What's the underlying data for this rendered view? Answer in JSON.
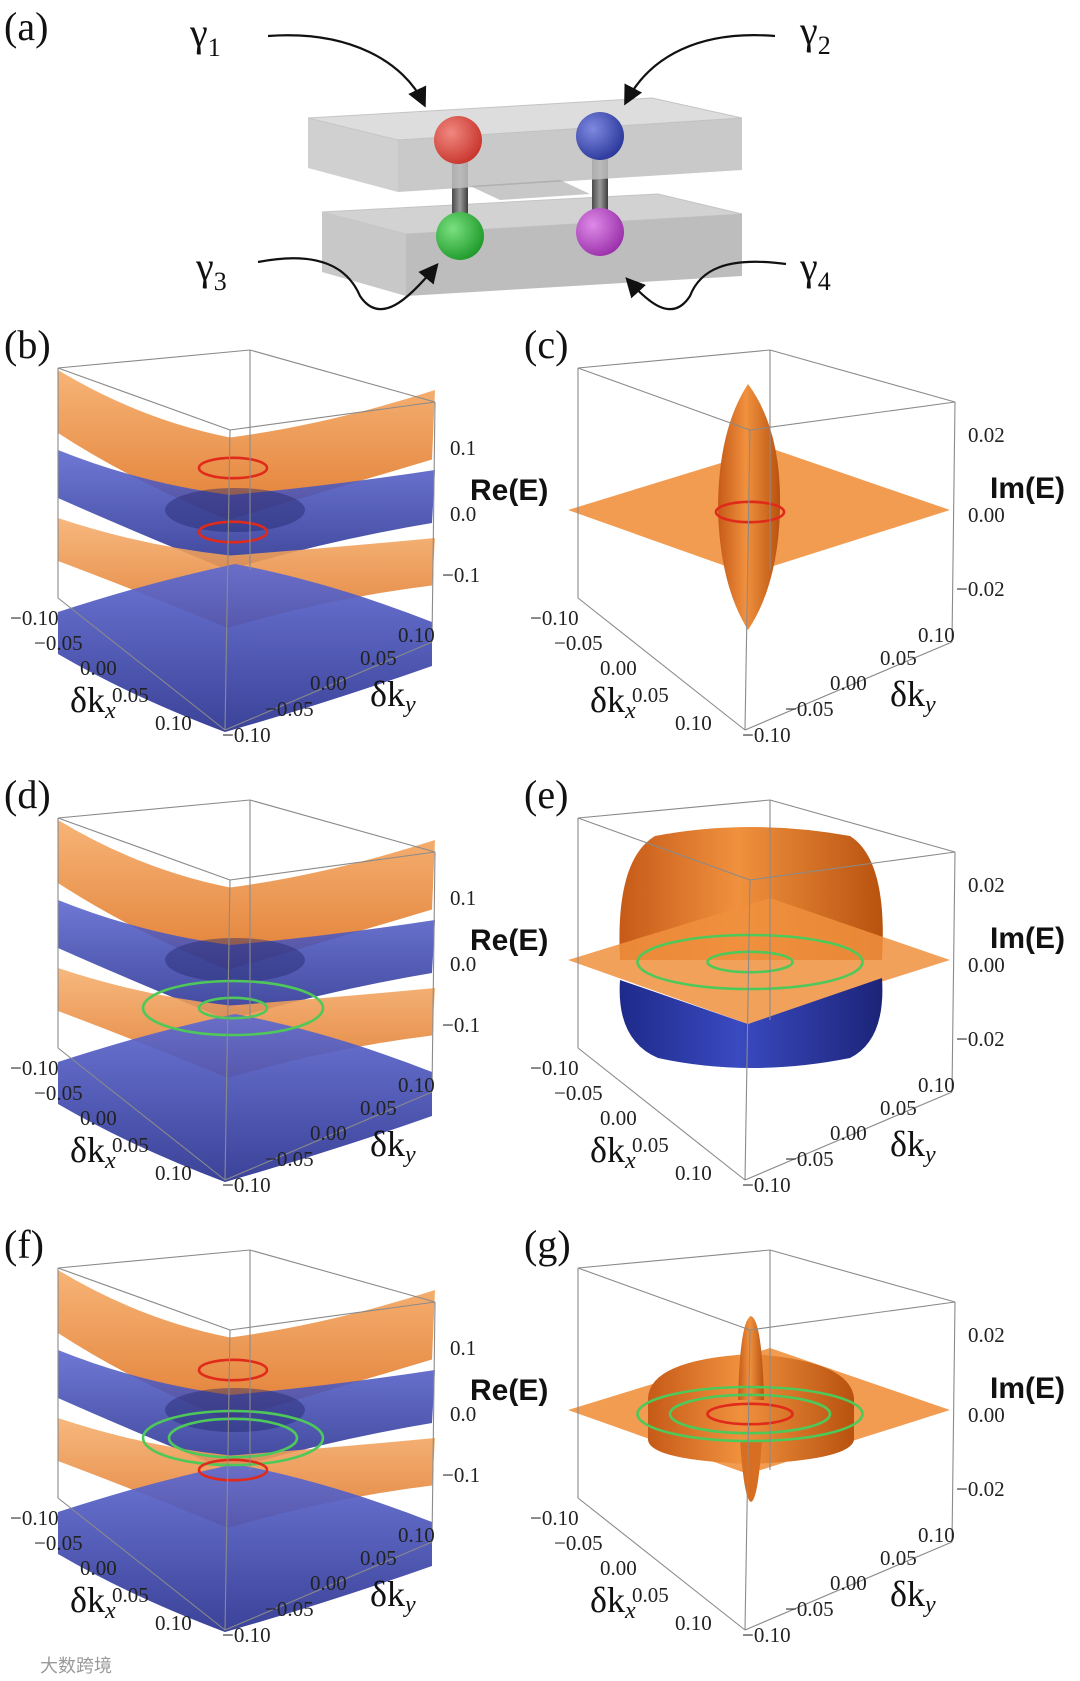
{
  "panel_a": {
    "label": "(a)",
    "gammas": [
      {
        "sym": "γ",
        "sub": "1"
      },
      {
        "sym": "γ",
        "sub": "2"
      },
      {
        "sym": "γ",
        "sub": "3"
      },
      {
        "sym": "γ",
        "sub": "4"
      }
    ],
    "sphere_colors": [
      "#d9473f",
      "#3f4fb5",
      "#2fb83a",
      "#b44cc4"
    ]
  },
  "re_axis": {
    "label": "Re(E)",
    "ticks": [
      "0.1",
      "0.0",
      "−0.1"
    ]
  },
  "im_axis": {
    "label": "Im(E)",
    "ticks": [
      "0.02",
      "0.00",
      "−0.02"
    ]
  },
  "kx_axis": {
    "sym": "δk",
    "sub": "x",
    "ticks": [
      "−0.10",
      "−0.05",
      "0.00",
      "0.05",
      "0.10"
    ]
  },
  "ky_axis": {
    "sym": "δk",
    "sub": "y",
    "ticks": [
      "−0.10",
      "−0.05",
      "0.00",
      "0.05",
      "0.10"
    ]
  },
  "panels": {
    "b": {
      "label": "(b)",
      "kind": "re",
      "rings": [
        {
          "level": "upper",
          "color": "#e02a1a",
          "size": "small"
        },
        {
          "level": "lower",
          "color": "#e02a1a",
          "size": "small"
        }
      ]
    },
    "c": {
      "label": "(c)",
      "kind": "im",
      "shape": "spindle",
      "rings": [
        {
          "color": "#e02a1a",
          "size": "small"
        }
      ]
    },
    "d": {
      "label": "(d)",
      "kind": "re",
      "rings": [
        {
          "level": "mid",
          "color": "#4fc85a",
          "size": "large"
        },
        {
          "level": "mid",
          "color": "#4fc85a",
          "size": "small"
        }
      ]
    },
    "e": {
      "label": "(e)",
      "kind": "im",
      "shape": "barrel",
      "rings": [
        {
          "color": "#4fc85a",
          "size": "large"
        },
        {
          "color": "#4fc85a",
          "size": "small"
        }
      ]
    },
    "f": {
      "label": "(f)",
      "kind": "re",
      "rings": [
        {
          "level": "upper",
          "color": "#e02a1a",
          "size": "small"
        },
        {
          "level": "mid",
          "color": "#4fc85a",
          "size": "large"
        },
        {
          "level": "mid",
          "color": "#4fc85a",
          "size": "medium"
        },
        {
          "level": "lower",
          "color": "#e02a1a",
          "size": "small"
        }
      ]
    },
    "g": {
      "label": "(g)",
      "kind": "im",
      "shape": "torus",
      "rings": [
        {
          "color": "#4fc85a",
          "size": "large"
        },
        {
          "color": "#4fc85a",
          "size": "medium"
        },
        {
          "color": "#e02a1a",
          "size": "small"
        }
      ]
    }
  },
  "colors": {
    "orange": "#f0913e",
    "blue": "#3a44b0",
    "red_ring": "#e02a1a",
    "green_ring": "#4fc85a"
  },
  "watermark": "大数跨境"
}
